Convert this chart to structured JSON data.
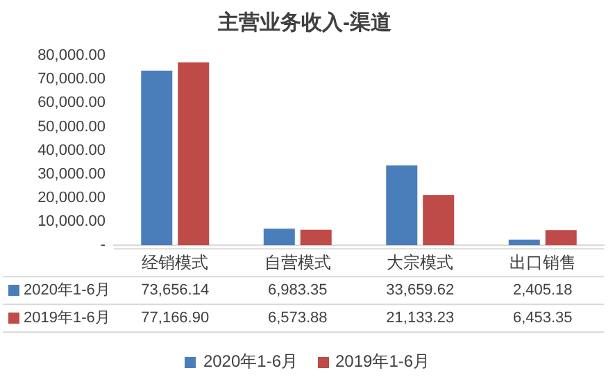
{
  "chart_data": {
    "type": "bar",
    "title": "主营业务收入-渠道",
    "categories": [
      "经销模式",
      "自营模式",
      "大宗模式",
      "出口销售"
    ],
    "series": [
      {
        "name": "2020年1-6月",
        "color": "#4a7ebb",
        "values": [
          73656.14,
          6983.35,
          33659.62,
          2405.18
        ]
      },
      {
        "name": "2019年1-6月",
        "color": "#be4b48",
        "values": [
          77166.9,
          6573.88,
          21133.23,
          6453.35
        ]
      }
    ],
    "value_labels": [
      [
        "73,656.14",
        "6,983.35",
        "33,659.62",
        "2,405.18"
      ],
      [
        "77,166.90",
        "6,573.88",
        "21,133.23",
        "6,453.35"
      ]
    ],
    "ylim": [
      0,
      80000
    ],
    "yticks": [
      {
        "value": 0,
        "label": "-"
      },
      {
        "value": 10000,
        "label": "10,000.00"
      },
      {
        "value": 20000,
        "label": "20,000.00"
      },
      {
        "value": 30000,
        "label": "30,000.00"
      },
      {
        "value": 40000,
        "label": "40,000.00"
      },
      {
        "value": 50000,
        "label": "50,000.00"
      },
      {
        "value": 60000,
        "label": "60,000.00"
      },
      {
        "value": 70000,
        "label": "70,000.00"
      },
      {
        "value": 80000,
        "label": "80,000.00"
      }
    ],
    "grid": false,
    "legend": "bottom"
  }
}
